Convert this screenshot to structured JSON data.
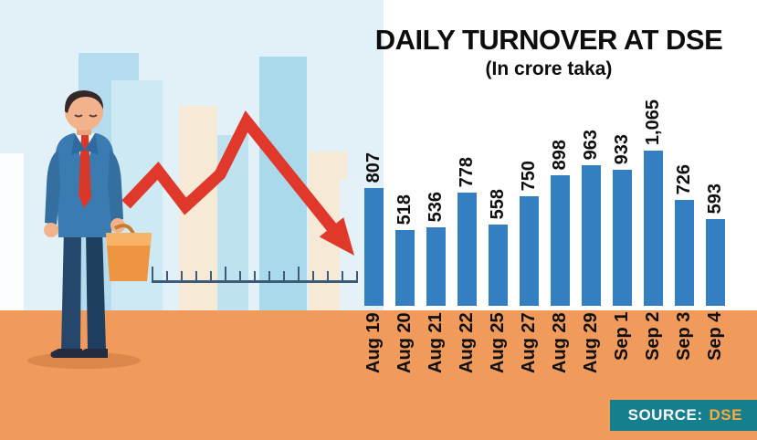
{
  "title": "DAILY TURNOVER AT DSE",
  "subtitle": "(In crore taka)",
  "source": {
    "label": "SOURCE:",
    "value": "DSE"
  },
  "colors": {
    "bar": "#337fc2",
    "ground": "#f09a5c",
    "arrow": "#e0392b",
    "sky": "#e2f0f7",
    "source_bg": "#157f8d",
    "source_value_text": "#ffaa3c",
    "label_text": "#101010"
  },
  "chart_data": {
    "type": "bar",
    "title": "DAILY TURNOVER AT DSE",
    "subtitle": "(In crore taka)",
    "unit": "crore taka",
    "categories": [
      "Aug 19",
      "Aug 20",
      "Aug 21",
      "Aug 22",
      "Aug 25",
      "Aug 27",
      "Aug 28",
      "Aug 29",
      "Sep 1",
      "Sep 2",
      "Sep 3",
      "Sep 4"
    ],
    "values": [
      807,
      518,
      536,
      778,
      558,
      750,
      898,
      963,
      933,
      1065,
      726,
      593
    ],
    "value_labels": [
      "807",
      "518",
      "536",
      "778",
      "558",
      "750",
      "898",
      "963",
      "933",
      "1,065",
      "726",
      "593"
    ],
    "ylim": [
      0,
      1065
    ],
    "grid": false,
    "legend": "none",
    "bar_color": "#337fc2",
    "value_label_rotation_deg": 90,
    "category_label_rotation_deg": 90
  }
}
